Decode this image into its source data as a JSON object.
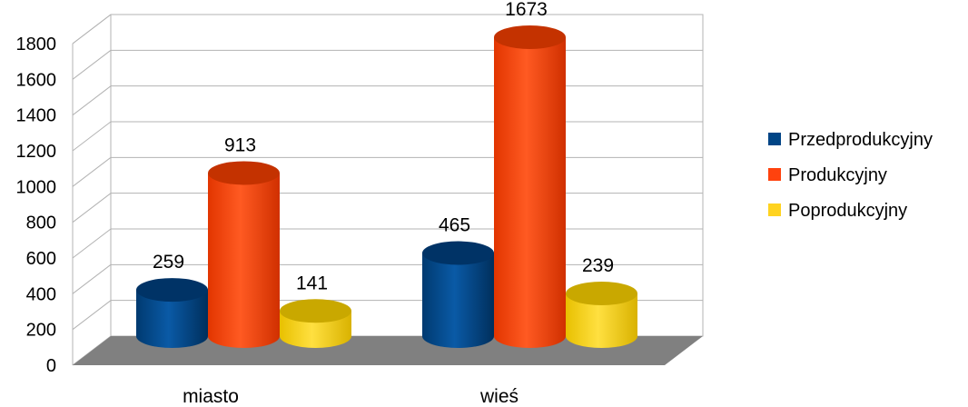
{
  "chart_data": {
    "type": "bar",
    "style": "3d-cylinder",
    "categories": [
      "miasto",
      "wieś"
    ],
    "series": [
      {
        "name": "Przedprodukcyjny",
        "values": [
          259,
          465
        ],
        "color": "#004586"
      },
      {
        "name": "Produkcyjny",
        "values": [
          913,
          1673
        ],
        "color": "#ff420e"
      },
      {
        "name": "Poprodukcyjny",
        "values": [
          141,
          239
        ],
        "color": "#ffd320"
      }
    ],
    "y_ticks": [
      "0",
      "200",
      "400",
      "600",
      "800",
      "1000",
      "1200",
      "1400",
      "1600",
      "1800"
    ],
    "ylim": [
      0,
      1800
    ],
    "grid": true,
    "legend_position": "right",
    "data_labels": true,
    "floor_color": "#808080"
  }
}
